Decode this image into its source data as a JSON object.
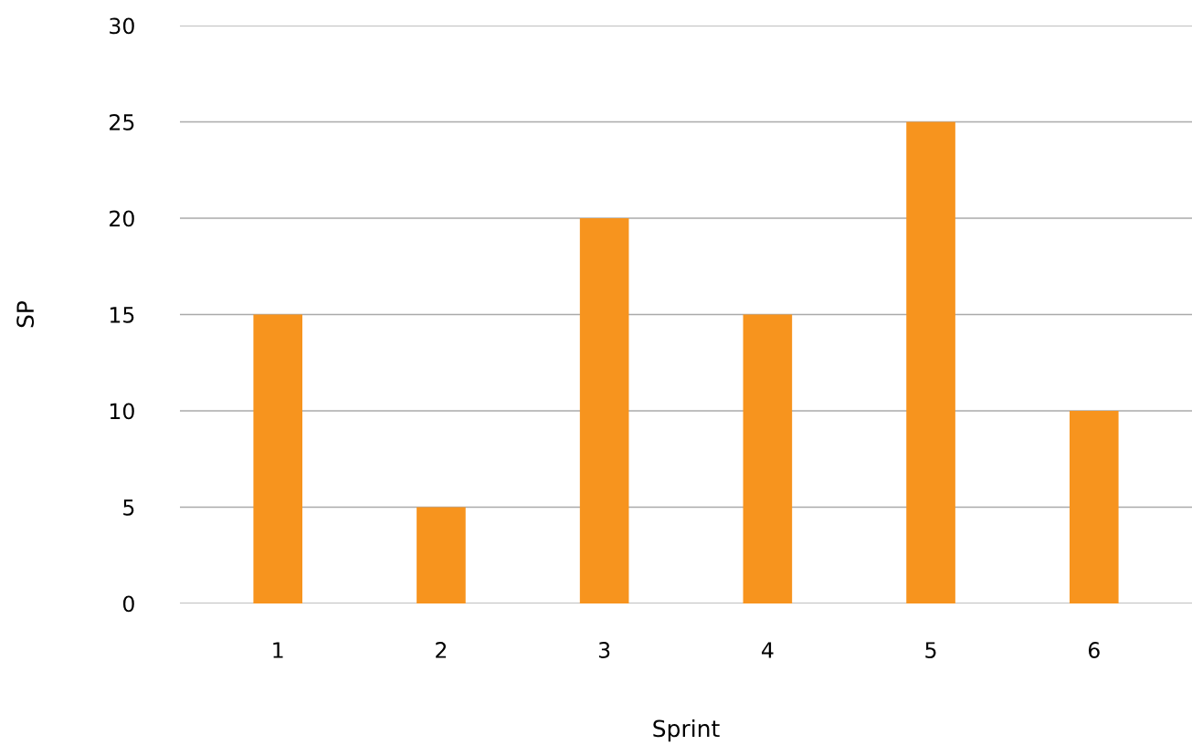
{
  "chart_data": {
    "type": "bar",
    "xlabel": "Sprint",
    "ylabel": "SP",
    "categories": [
      "1",
      "2",
      "3",
      "4",
      "5",
      "6"
    ],
    "values": [
      15,
      5,
      20,
      15,
      25,
      10
    ],
    "color": "#f7941e",
    "ylim": [
      0,
      30
    ],
    "yticks": [
      0,
      5,
      10,
      15,
      20,
      25,
      30
    ],
    "grid": "y",
    "legend": false
  }
}
